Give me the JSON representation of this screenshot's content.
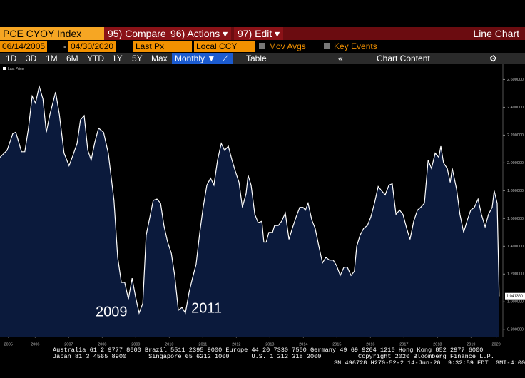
{
  "toolbar": {
    "security": "PCE CYOY Index",
    "menus": [
      "95) Compare",
      "96) Actions ▾",
      "97) Edit ▾"
    ],
    "view": "Line Chart",
    "start_date": "06/14/2005",
    "separator": "-",
    "end_date": "04/30/2020",
    "field": "Last Px",
    "currency": "Local CCY",
    "toggles": [
      "Mov Avgs",
      "Key Events"
    ],
    "periods": [
      "1D",
      "3D",
      "1M",
      "6M",
      "YTD",
      "1Y",
      "5Y",
      "Max"
    ],
    "frequency": "Monthly ▼",
    "table": "Table",
    "collapse": "«",
    "chart_content": "Chart Content"
  },
  "chart_data": {
    "type": "area",
    "color": "#ffffff",
    "fill": "#0b1a3c",
    "grid": false,
    "x": [
      2005.45,
      2005.66,
      2005.83,
      2005.92,
      2006.02,
      2006.09,
      2006.19,
      2006.3,
      2006.41,
      2006.51,
      2006.62,
      2006.73,
      2006.83,
      2006.94,
      2007.11,
      2007.22,
      2007.36,
      2007.51,
      2007.62,
      2007.75,
      2007.85,
      2007.96,
      2008.07,
      2008.17,
      2008.28,
      2008.39,
      2008.54,
      2008.68,
      2008.85,
      2008.96,
      2009.07,
      2009.17,
      2009.28,
      2009.39,
      2009.49,
      2009.6,
      2009.71,
      2009.81,
      2009.92,
      2010.02,
      2010.13,
      2010.24,
      2010.34,
      2010.45,
      2010.56,
      2010.66,
      2010.77,
      2010.88,
      2010.98,
      2011.09,
      2011.19,
      2011.3,
      2011.41,
      2011.51,
      2011.62,
      2011.73,
      2011.83,
      2011.94,
      2012.05,
      2012.15,
      2012.26,
      2012.37,
      2012.47,
      2012.58,
      2012.68,
      2012.79,
      2012.85,
      2012.94,
      2013.05,
      2013.15,
      2013.26,
      2013.32,
      2013.39,
      2013.47,
      2013.58,
      2013.64,
      2013.75,
      2013.85,
      2013.96,
      2014.07,
      2014.17,
      2014.28,
      2014.39,
      2014.49,
      2014.56,
      2014.64,
      2014.75,
      2014.85,
      2014.96,
      2015.07,
      2015.17,
      2015.28,
      2015.39,
      2015.49,
      2015.6,
      2015.71,
      2015.81,
      2015.92,
      2016.02,
      2016.09,
      2016.19,
      2016.3,
      2016.41,
      2016.51,
      2016.62,
      2016.73,
      2016.83,
      2016.94,
      2017.05,
      2017.15,
      2017.26,
      2017.37,
      2017.47,
      2017.58,
      2017.68,
      2017.79,
      2017.9,
      2018.0,
      2018.11,
      2018.22,
      2018.32,
      2018.43,
      2018.54,
      2018.6,
      2018.68,
      2018.79,
      2018.88,
      2018.94,
      2019.07,
      2019.17,
      2019.28,
      2019.39,
      2019.49,
      2019.6,
      2019.71,
      2019.81,
      2019.92,
      2020.02,
      2020.13,
      2020.19,
      2020.28,
      2020.34
    ],
    "series": [
      {
        "name": "Last Price",
        "values": [
          2.04,
          2.09,
          2.21,
          2.22,
          2.14,
          2.08,
          2.08,
          2.25,
          2.48,
          2.43,
          2.55,
          2.46,
          2.22,
          2.35,
          2.51,
          2.35,
          2.07,
          1.98,
          2.05,
          2.14,
          2.31,
          2.34,
          2.09,
          2.02,
          2.15,
          2.25,
          2.22,
          2.07,
          1.73,
          1.32,
          1.14,
          1.14,
          1.02,
          1.17,
          1.04,
          0.92,
          0.99,
          1.48,
          1.61,
          1.73,
          1.74,
          1.71,
          1.55,
          1.43,
          1.35,
          1.19,
          0.94,
          0.96,
          0.92,
          1.07,
          1.17,
          1.27,
          1.5,
          1.68,
          1.84,
          1.89,
          1.84,
          2.02,
          2.14,
          2.09,
          2.12,
          2.02,
          1.94,
          1.86,
          1.68,
          1.78,
          1.91,
          1.84,
          1.63,
          1.57,
          1.58,
          1.43,
          1.43,
          1.5,
          1.5,
          1.55,
          1.55,
          1.58,
          1.64,
          1.45,
          1.53,
          1.61,
          1.68,
          1.68,
          1.66,
          1.71,
          1.59,
          1.53,
          1.4,
          1.28,
          1.32,
          1.3,
          1.3,
          1.26,
          1.19,
          1.25,
          1.25,
          1.19,
          1.22,
          1.4,
          1.48,
          1.53,
          1.55,
          1.61,
          1.71,
          1.83,
          1.8,
          1.77,
          1.84,
          1.85,
          1.63,
          1.66,
          1.63,
          1.53,
          1.45,
          1.58,
          1.66,
          1.68,
          1.71,
          2.02,
          1.96,
          2.07,
          2.04,
          2.12,
          2.0,
          1.96,
          1.86,
          1.96,
          1.81,
          1.63,
          1.5,
          1.59,
          1.66,
          1.68,
          1.74,
          1.63,
          1.54,
          1.63,
          1.68,
          1.8,
          1.71,
          1.04
        ]
      }
    ],
    "last_price": {
      "value": 1.04136,
      "label": "1.041360"
    },
    "annotations": [
      "2009",
      "2011"
    ],
    "xlim": [
      2005.45,
      2020.45
    ],
    "xticks": [
      {
        "value": 2005.7,
        "label": "2005"
      },
      {
        "value": 2006.5,
        "label": "2006"
      },
      {
        "value": 2007.5,
        "label": "2007"
      },
      {
        "value": 2008.5,
        "label": "2008"
      },
      {
        "value": 2009.5,
        "label": "2009"
      },
      {
        "value": 2010.5,
        "label": "2010"
      },
      {
        "value": 2011.5,
        "label": "2011"
      },
      {
        "value": 2012.5,
        "label": "2012"
      },
      {
        "value": 2013.5,
        "label": "2013"
      },
      {
        "value": 2014.5,
        "label": "2014"
      },
      {
        "value": 2015.5,
        "label": "2015"
      },
      {
        "value": 2016.5,
        "label": "2016"
      },
      {
        "value": 2017.5,
        "label": "2017"
      },
      {
        "value": 2018.5,
        "label": "2018"
      },
      {
        "value": 2019.5,
        "label": "2019"
      },
      {
        "value": 2020.25,
        "label": "2020"
      }
    ],
    "ylim": [
      0.75,
      2.71
    ],
    "yticks": [
      {
        "value": 0.8,
        "label": "0.800000"
      },
      {
        "value": 1.0,
        "label": "1.000000"
      },
      {
        "value": 1.2,
        "label": "1.200000"
      },
      {
        "value": 1.4,
        "label": "1.400000"
      },
      {
        "value": 1.6,
        "label": "1.600000"
      },
      {
        "value": 1.8,
        "label": "1.800000"
      },
      {
        "value": 2.0,
        "label": "2.000000"
      },
      {
        "value": 2.2,
        "label": "2.200000"
      },
      {
        "value": 2.4,
        "label": "2.400000"
      },
      {
        "value": 2.6,
        "label": "2.600000"
      }
    ]
  },
  "footer": [
    "Australia 61 2 9777 8600 Brazil 5511 2395 9000 Europe 44 20 7330 7500 Germany 49 69 9204 1210 Hong Kong 852 2977 6000",
    "Japan 81 3 4565 8900      Singapore 65 6212 1000      U.S. 1 212 318 2000          Copyright 2020 Bloomberg Finance L.P.",
    "SN 496728 H270-52-2 14-Jun-20  9:32:59 EDT  GMT-4:00"
  ]
}
